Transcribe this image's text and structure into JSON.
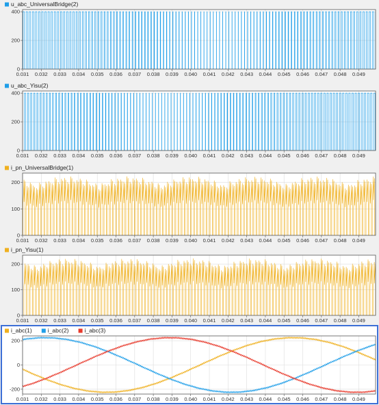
{
  "colors": {
    "blue": "#1f9ee8",
    "orange": "#efb01f",
    "red": "#e8392b",
    "selection": "#3c6fd6",
    "grid": "#dcdcdc",
    "axes": "#555555"
  },
  "chart_data": [
    {
      "type": "line",
      "legend": [
        {
          "name": "u_abc_UniversalBridge(2)",
          "color": "#1f9ee8"
        }
      ],
      "signal": "pwm",
      "x": {
        "min": 0.031,
        "max": 0.0499,
        "ticks": [
          "0.031",
          "0.032",
          "0.033",
          "0.034",
          "0.035",
          "0.036",
          "0.037",
          "0.038",
          "0.039",
          "0.040",
          "0.041",
          "0.042",
          "0.043",
          "0.044",
          "0.045",
          "0.046",
          "0.047",
          "0.048",
          "0.049"
        ]
      },
      "y": {
        "min": 0,
        "max": 415,
        "ticks": [
          "0",
          "200",
          "400"
        ]
      },
      "levels": [
        0,
        400
      ],
      "grid": true,
      "legend_position": "top-left"
    },
    {
      "type": "line",
      "legend": [
        {
          "name": "u_abc_Yisu(2)",
          "color": "#1f9ee8"
        }
      ],
      "signal": "pwm",
      "x": {
        "min": 0.031,
        "max": 0.0499,
        "ticks": [
          "0.031",
          "0.032",
          "0.033",
          "0.034",
          "0.035",
          "0.036",
          "0.037",
          "0.038",
          "0.039",
          "0.040",
          "0.041",
          "0.042",
          "0.043",
          "0.044",
          "0.045",
          "0.046",
          "0.047",
          "0.048",
          "0.049"
        ]
      },
      "y": {
        "min": 0,
        "max": 415,
        "ticks": [
          "0",
          "200",
          "400"
        ]
      },
      "levels": [
        0,
        400
      ],
      "grid": true,
      "legend_position": "top-left"
    },
    {
      "type": "line",
      "legend": [
        {
          "name": "i_pn_UniversalBridge(1)",
          "color": "#efb01f"
        }
      ],
      "signal": "dc-current",
      "x": {
        "min": 0.031,
        "max": 0.0499,
        "ticks": [
          "0.031",
          "0.032",
          "0.033",
          "0.034",
          "0.035",
          "0.036",
          "0.037",
          "0.038",
          "0.039",
          "0.040",
          "0.041",
          "0.042",
          "0.043",
          "0.044",
          "0.045",
          "0.046",
          "0.047",
          "0.048",
          "0.049"
        ]
      },
      "y": {
        "min": 0,
        "max": 235,
        "ticks": [
          "0",
          "100",
          "200"
        ]
      },
      "envelope_peak": 225,
      "grid": true,
      "legend_position": "top-left"
    },
    {
      "type": "line",
      "legend": [
        {
          "name": "i_pn_Yisu(1)",
          "color": "#efb01f"
        }
      ],
      "signal": "dc-current",
      "x": {
        "min": 0.031,
        "max": 0.0499,
        "ticks": [
          "0.031",
          "0.032",
          "0.033",
          "0.034",
          "0.035",
          "0.036",
          "0.037",
          "0.038",
          "0.039",
          "0.040",
          "0.041",
          "0.042",
          "0.043",
          "0.044",
          "0.045",
          "0.046",
          "0.047",
          "0.048",
          "0.049"
        ]
      },
      "y": {
        "min": 0,
        "max": 235,
        "ticks": [
          "0",
          "100",
          "200"
        ]
      },
      "envelope_peak": 225,
      "grid": true,
      "legend_position": "top-left"
    },
    {
      "type": "line",
      "legend": [
        {
          "name": "i_abc(1)",
          "color": "#efb01f"
        },
        {
          "name": "i_abc(2)",
          "color": "#1f9ee8"
        },
        {
          "name": "i_abc(3)",
          "color": "#e8392b"
        }
      ],
      "signal": "three-phase",
      "amplitude": 225,
      "frequency_hz": 50,
      "series": [
        {
          "name": "i_abc(1)",
          "peak_at_s": 0.0455
        },
        {
          "name": "i_abc(2)",
          "peak_at_s": 0.0322
        },
        {
          "name": "i_abc(3)",
          "peak_at_s": 0.0389
        }
      ],
      "x": {
        "min": 0.031,
        "max": 0.0499,
        "ticks": [
          "0.031",
          "0.032",
          "0.033",
          "0.034",
          "0.035",
          "0.036",
          "0.037",
          "0.038",
          "0.039",
          "0.040",
          "0.041",
          "0.042",
          "0.043",
          "0.044",
          "0.045",
          "0.046",
          "0.047",
          "0.048",
          "0.049"
        ]
      },
      "y": {
        "min": -240,
        "max": 240,
        "ticks": [
          "-200",
          "0",
          "200"
        ]
      },
      "grid": true,
      "legend_position": "top-left",
      "selected": true
    }
  ]
}
